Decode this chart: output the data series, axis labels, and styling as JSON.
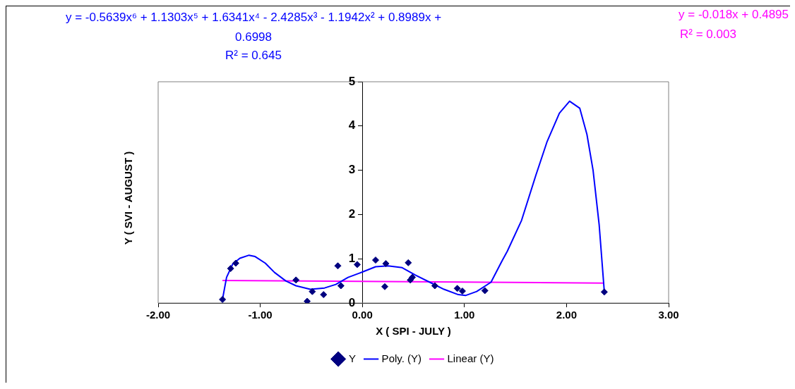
{
  "chart_data": {
    "type": "scatter",
    "xlabel": "X ( SPI - JULY )",
    "ylabel": "Y ( SVI - AUGUST )",
    "xlim": [
      -2,
      3
    ],
    "xticks": [
      {
        "value": -2,
        "label": "-2.00"
      },
      {
        "value": -1,
        "label": "-1.00"
      },
      {
        "value": 0,
        "label": "0.00"
      },
      {
        "value": 1,
        "label": "1.00"
      },
      {
        "value": 2,
        "label": "2.00"
      },
      {
        "value": 3,
        "label": "3.00"
      }
    ],
    "ylim": [
      0,
      5
    ],
    "yticks": [
      0,
      1,
      2,
      3,
      4,
      5
    ],
    "grid": false,
    "legend": "bottom",
    "annotations": [
      "y = -0.5639x⁶ + 1.1303x⁵ + 1.6341x⁴ - 2.4285x³ - 1.1942x² + 0.8989x + 0.6998",
      "R² = 0.645",
      "y = -0.018x + 0.4895",
      "R² = 0.003"
    ],
    "series": [
      {
        "name": "Y",
        "color": "#000080",
        "marker": "diamond",
        "x": [
          -1.37,
          -1.29,
          -1.24,
          -0.65,
          -0.54,
          -0.49,
          -0.38,
          -0.24,
          -0.21,
          -0.05,
          0.13,
          0.23,
          0.22,
          0.45,
          0.47,
          0.49,
          0.71,
          0.93,
          0.98,
          1.2,
          2.37
        ],
        "values": [
          0.08,
          0.78,
          0.9,
          0.52,
          0.04,
          0.26,
          0.19,
          0.84,
          0.39,
          0.87,
          0.97,
          0.89,
          0.37,
          0.91,
          0.52,
          0.58,
          0.39,
          0.33,
          0.27,
          0.28,
          0.25
        ]
      },
      {
        "name": "Poly. (Y)",
        "type": "line",
        "color": "#0000ff",
        "marker": "none",
        "x": [
          -1.37,
          -1.33,
          -1.27,
          -1.2,
          -1.11,
          -1.05,
          -0.95,
          -0.86,
          -0.75,
          -0.65,
          -0.51,
          -0.37,
          -0.26,
          -0.14,
          0,
          0.13,
          0.25,
          0.39,
          0.52,
          0.66,
          0.8,
          0.94,
          1.01,
          1.12,
          1.26,
          1.37,
          1.42,
          1.56,
          1.7,
          1.81,
          1.93,
          2.03,
          2.13,
          2.2,
          2.26,
          2.32,
          2.37
        ],
        "values": [
          0.08,
          0.58,
          0.88,
          1.01,
          1.08,
          1.05,
          0.9,
          0.69,
          0.5,
          0.39,
          0.31,
          0.34,
          0.42,
          0.58,
          0.7,
          0.82,
          0.84,
          0.8,
          0.63,
          0.47,
          0.31,
          0.19,
          0.17,
          0.26,
          0.47,
          0.96,
          1.17,
          1.87,
          2.89,
          3.65,
          4.29,
          4.56,
          4.4,
          3.81,
          3.0,
          1.76,
          0.26
        ]
      },
      {
        "name": "Linear (Y)",
        "type": "line",
        "color": "#ff00ff",
        "marker": "none",
        "x": [
          -1.37,
          2.37
        ],
        "values": [
          0.51,
          0.45
        ]
      }
    ]
  }
}
